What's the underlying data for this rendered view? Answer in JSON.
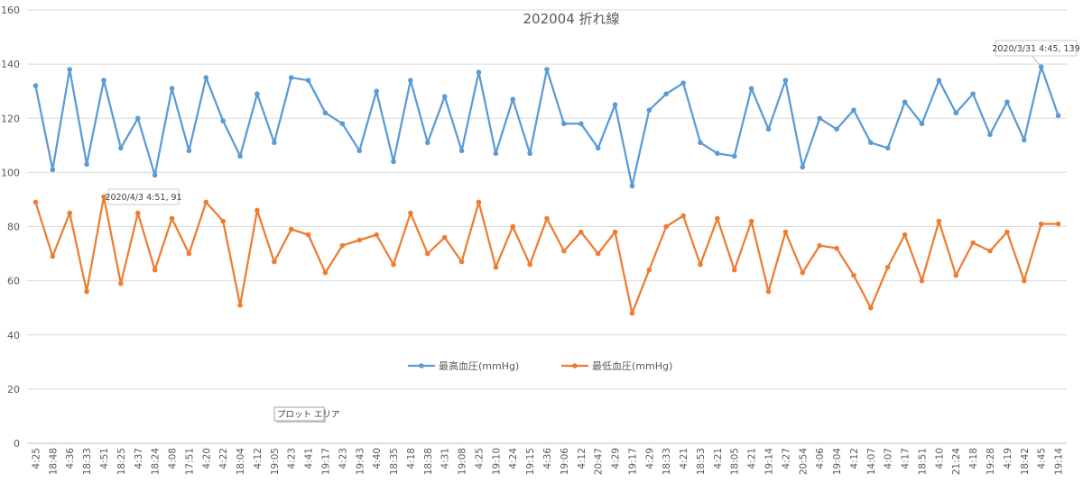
{
  "chart_data": {
    "type": "line",
    "title": "202004  折れ線",
    "xlabel": "",
    "ylabel": "",
    "ylim": [
      0,
      160
    ],
    "yticks": [
      0,
      20,
      40,
      60,
      80,
      100,
      120,
      140,
      160
    ],
    "grid": true,
    "legend_position": "bottom-center",
    "categories": [
      "4:25",
      "18:48",
      "4:36",
      "18:33",
      "4:51",
      "18:25",
      "4:37",
      "18:24",
      "4:08",
      "17:51",
      "4:20",
      "4:22",
      "18:04",
      "4:12",
      "19:05",
      "4:23",
      "4:41",
      "19:17",
      "4:23",
      "19:43",
      "4:40",
      "18:35",
      "4:18",
      "18:38",
      "4:31",
      "19:08",
      "4:25",
      "19:10",
      "4:24",
      "19:15",
      "4:36",
      "19:06",
      "4:12",
      "20:47",
      "4:29",
      "19:17",
      "4:29",
      "18:33",
      "4:21",
      "18:53",
      "4:21",
      "18:05",
      "4:21",
      "19:14",
      "4:27",
      "20:54",
      "4:06",
      "19:04",
      "4:12",
      "14:07",
      "4:07",
      "4:17",
      "18:51",
      "4:10",
      "21:24",
      "4:18",
      "19:28",
      "4:19",
      "18:42",
      "4:45",
      "19:14"
    ],
    "series": [
      {
        "name": "最高血圧(mmHg)",
        "color": "#5B9BD5",
        "values": [
          132,
          101,
          138,
          103,
          134,
          109,
          120,
          99,
          131,
          108,
          135,
          119,
          106,
          129,
          111,
          135,
          134,
          122,
          118,
          108,
          130,
          104,
          134,
          111,
          128,
          108,
          137,
          107,
          127,
          107,
          138,
          118,
          118,
          109,
          125,
          95,
          123,
          129,
          133,
          111,
          107,
          106,
          131,
          116,
          134,
          102,
          120,
          116,
          123,
          111,
          109,
          126,
          118,
          134,
          122,
          129,
          114,
          126,
          112,
          139,
          121
        ]
      },
      {
        "name": "最低血圧(mmHg)",
        "color": "#ED7D31",
        "values": [
          89,
          69,
          85,
          56,
          91,
          59,
          85,
          64,
          83,
          70,
          89,
          82,
          51,
          86,
          67,
          79,
          77,
          63,
          73,
          75,
          77,
          66,
          85,
          70,
          76,
          67,
          89,
          65,
          80,
          66,
          83,
          71,
          78,
          70,
          78,
          48,
          64,
          80,
          84,
          66,
          83,
          64,
          82,
          56,
          78,
          63,
          73,
          72,
          62,
          50,
          65,
          77,
          60,
          82,
          62,
          74,
          71,
          78,
          60,
          81,
          81
        ]
      }
    ],
    "annotations": [
      {
        "series": 0,
        "index": 59,
        "text": "2020/3/31 4:45, 139"
      },
      {
        "series": 1,
        "index": 4,
        "text": "2020/4/3 4:51, 91"
      }
    ],
    "tooltip": "プロット エリア"
  }
}
